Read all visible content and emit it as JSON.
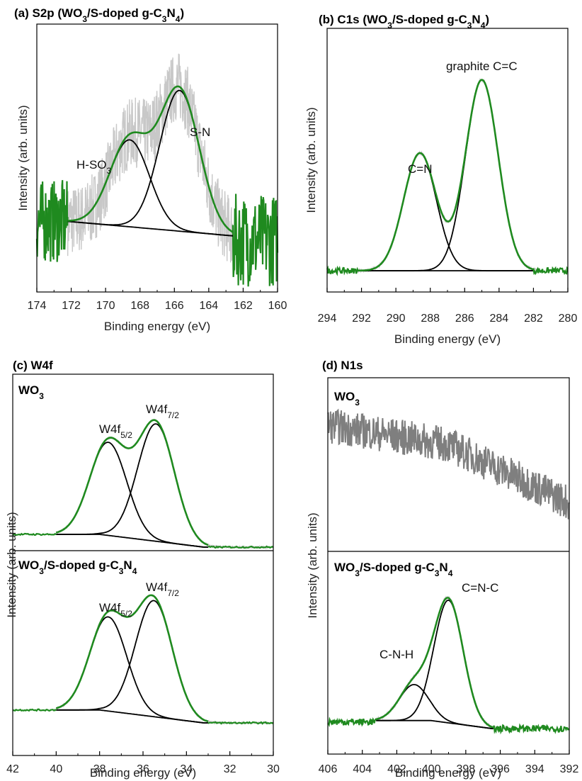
{
  "colors": {
    "fit": "#1f8a1f",
    "raw": "#c8c8c8",
    "raw_wo3_n1s": "#7f7f7f",
    "component": "#000000"
  },
  "chart_data": [
    {
      "id": "a",
      "type": "line",
      "title": "(a) S2p (WO3/S-doped g-C3N4)",
      "xlabel": "Binding energy (eV)",
      "ylabel": "Intensity (arb. units)",
      "xlim": [
        174,
        160
      ],
      "xticks": [
        "174",
        "172",
        "170",
        "168",
        "166",
        "164",
        "162",
        "160"
      ],
      "x_reversed": true,
      "annotations": [
        "H-SO3",
        "S-N"
      ],
      "peaks": [
        {
          "label": "H-SO3",
          "center": 168.6,
          "height": 0.42
        },
        {
          "label": "S-N",
          "center": 165.7,
          "height": 0.68
        }
      ],
      "baseline": [
        0.17,
        0.1
      ],
      "fit_range": [
        172.2,
        162.6
      ],
      "noise": 0.12
    },
    {
      "id": "b",
      "type": "line",
      "title": "(b) C1s (WO3/S-doped g-C3N4)",
      "xlabel": "Binding energy (eV)",
      "ylabel": "Intensity (arb. units)",
      "xlim": [
        294,
        280
      ],
      "xticks": [
        "294",
        "292",
        "290",
        "288",
        "286",
        "284",
        "282",
        "280"
      ],
      "x_reversed": true,
      "annotations": [
        "C=N",
        "graphite C=C"
      ],
      "peaks": [
        {
          "label": "C=N",
          "center": 288.6,
          "height": 0.61
        },
        {
          "label": "graphite C=C",
          "center": 285.0,
          "height": 0.99
        }
      ],
      "baseline": [
        0.0,
        0.0
      ],
      "fit_range": [
        292.2,
        282.0
      ],
      "noise": 0.01
    },
    {
      "id": "c",
      "type": "line",
      "title": "(c) W4f",
      "xlabel": "Binding energy (eV)",
      "ylabel": "Intensity (arb. units)",
      "xlim": [
        42,
        30
      ],
      "xticks": [
        "42",
        "40",
        "38",
        "36",
        "34",
        "32",
        "30"
      ],
      "x_reversed": true,
      "panels": [
        {
          "label": "WO3",
          "annotations": [
            "W4f5/2",
            "W4f7/2"
          ],
          "peaks": [
            {
              "label": "W4f5/2",
              "center": 37.6,
              "height": 0.73
            },
            {
              "label": "W4f7/2",
              "center": 35.4,
              "height": 0.92
            }
          ]
        },
        {
          "label": "WO3/S-doped g-C3N4",
          "annotations": [
            "W4f5/2",
            "W4f7/2"
          ],
          "peaks": [
            {
              "label": "W4f5/2",
              "center": 37.6,
              "height": 0.73
            },
            {
              "label": "W4f7/2",
              "center": 35.5,
              "height": 0.9
            }
          ]
        }
      ]
    },
    {
      "id": "d",
      "type": "line",
      "title": "(d) N1s",
      "xlabel": "Binding energy (eV)",
      "ylabel": "Intensity (arb. units)",
      "xlim": [
        406,
        392
      ],
      "xticks": [
        "406",
        "404",
        "402",
        "400",
        "398",
        "396",
        "394",
        "392"
      ],
      "x_reversed": true,
      "panels": [
        {
          "label": "WO3",
          "annotations": [],
          "raw_trend": [
            [
              406,
              0.78
            ],
            [
              399,
              0.66
            ],
            [
              392,
              0.3
            ]
          ]
        },
        {
          "label": "WO3/S-doped g-C3N4",
          "annotations": [
            "C-N-H",
            "C=N-C"
          ],
          "peaks": [
            {
              "label": "C-N-H",
              "center": 401.0,
              "height": 0.27
            },
            {
              "label": "C=N-C",
              "center": 399.0,
              "height": 0.92
            }
          ]
        }
      ]
    }
  ]
}
